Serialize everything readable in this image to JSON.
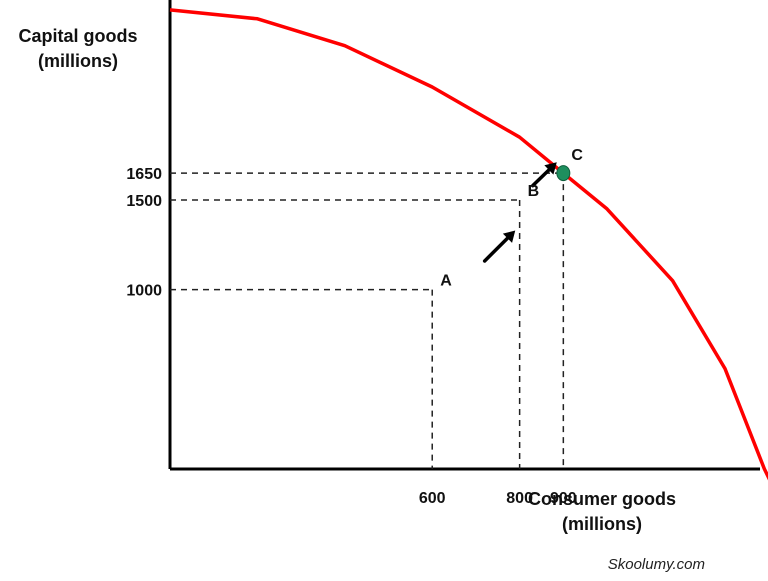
{
  "chart_data": {
    "type": "line",
    "ylabel": [
      "Capital goods",
      "(millions)"
    ],
    "xlabel": [
      "Consumer goods",
      "(millions)"
    ],
    "x_ticks": [
      600,
      800,
      900
    ],
    "y_ticks": [
      1000,
      1500,
      1650
    ],
    "series": [
      {
        "x": [
          0,
          200,
          400,
          600,
          800,
          900,
          1000,
          1150,
          1270,
          1360,
          1410
        ],
        "y": [
          2560,
          2510,
          2360,
          2130,
          1850,
          1650,
          1450,
          1050,
          560,
          0,
          -250
        ],
        "color": "#ff0000"
      }
    ],
    "points": [
      {
        "label": "A",
        "x": 600,
        "y": 1000
      },
      {
        "label": "B",
        "x": 800,
        "y": 1500
      },
      {
        "label": "C",
        "x": 900,
        "y": 1650,
        "marker_color": "#1e8f5e"
      }
    ],
    "arrows": [
      {
        "from": {
          "x": 720,
          "y": 1160
        },
        "to": {
          "x": 790,
          "y": 1330
        }
      },
      {
        "from": {
          "x": 830,
          "y": 1580
        },
        "to": {
          "x": 885,
          "y": 1710
        }
      }
    ],
    "xlim": [
      0,
      1350
    ],
    "ylim": [
      0,
      2615
    ],
    "grid": false,
    "legend": "none"
  },
  "watermark": "Skoolumy.com"
}
